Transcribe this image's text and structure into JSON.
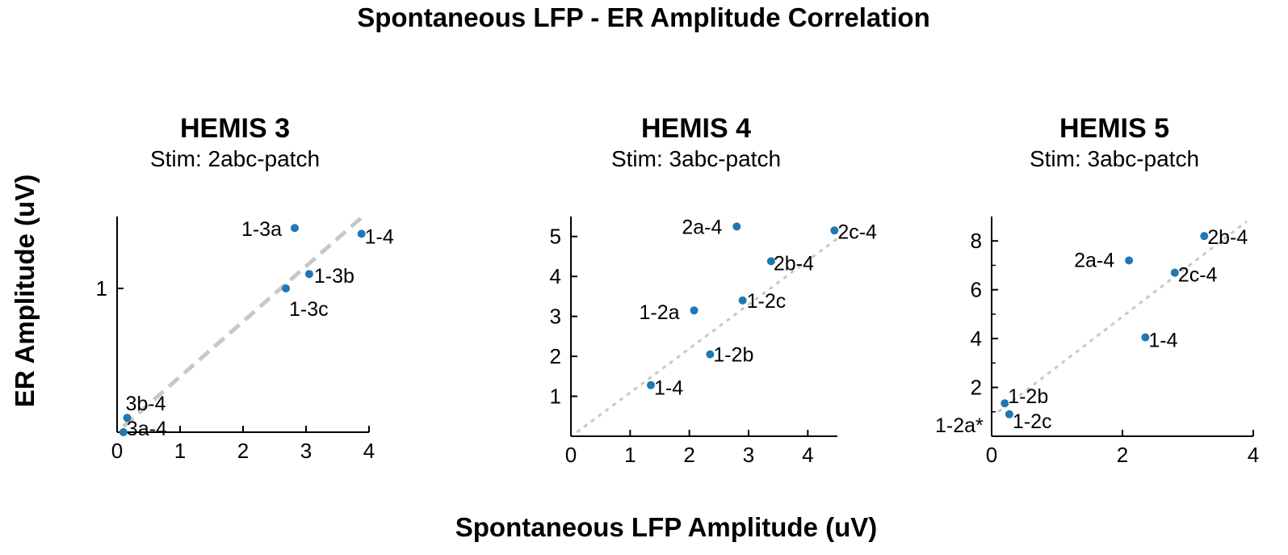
{
  "chart_data": {
    "type": "scatter",
    "title": "Spontaneous LFP - ER Amplitude Correlation",
    "xlabel": "Spontaneous LFP Amplitude (uV)",
    "ylabel": "ER Amplitude (uV)",
    "marker_color": "#1f77b4",
    "fit_line_color": "#c8c8c8",
    "panels": [
      {
        "title": "HEMIS 3",
        "subtitle": "Stim: 2abc-patch",
        "xlim": [
          0,
          4
        ],
        "ylim": [
          0.5,
          1.25
        ],
        "xticks": [
          0,
          1,
          2,
          3,
          4
        ],
        "yticks": [
          1
        ],
        "minor_yticks": [],
        "fit_line": {
          "x": [
            0.1,
            3.9
          ],
          "y": [
            0.52,
            1.25
          ],
          "style": "dashed-thick"
        },
        "points": [
          {
            "label": "1-3a",
            "x": 2.82,
            "y": 1.21
          },
          {
            "label": "1-4",
            "x": 3.88,
            "y": 1.19
          },
          {
            "label": "1-3b",
            "x": 3.05,
            "y": 1.05
          },
          {
            "label": "1-3c",
            "x": 2.68,
            "y": 1.0
          },
          {
            "label": "3b-4",
            "x": 0.16,
            "y": 0.55
          },
          {
            "label": "3a-4",
            "x": 0.1,
            "y": 0.5
          }
        ]
      },
      {
        "title": "HEMIS 4",
        "subtitle": "Stim: 3abc-patch",
        "xlim": [
          0,
          4.5
        ],
        "ylim": [
          0,
          5.5
        ],
        "xticks": [
          0,
          1,
          2,
          3,
          4
        ],
        "yticks": [
          1,
          2,
          3,
          4,
          5
        ],
        "minor_yticks": [],
        "fit_line": {
          "x": [
            0.1,
            5.0
          ],
          "y": [
            0.1,
            5.5
          ],
          "style": "dotted"
        },
        "points": [
          {
            "label": "2a-4",
            "x": 2.8,
            "y": 5.25
          },
          {
            "label": "2c-4",
            "x": 4.45,
            "y": 5.15
          },
          {
            "label": "2b-4",
            "x": 3.38,
            "y": 4.38
          },
          {
            "label": "1-2a",
            "x": 2.08,
            "y": 3.15
          },
          {
            "label": "1-2c",
            "x": 2.9,
            "y": 3.4
          },
          {
            "label": "1-2b",
            "x": 2.35,
            "y": 2.05
          },
          {
            "label": "1-4",
            "x": 1.35,
            "y": 1.28
          }
        ]
      },
      {
        "title": "HEMIS 5",
        "subtitle": "Stim: 3abc-patch",
        "xlim": [
          0,
          4
        ],
        "ylim": [
          0,
          9
        ],
        "xticks": [
          0,
          2,
          4
        ],
        "yticks": [
          2,
          4,
          6,
          8
        ],
        "minor_yticks": [
          1,
          3,
          5,
          7
        ],
        "fit_line": {
          "x": [
            0.1,
            3.9
          ],
          "y": [
            1.0,
            8.8
          ],
          "style": "dotted"
        },
        "points": [
          {
            "label": "2b-4",
            "x": 3.25,
            "y": 8.2
          },
          {
            "label": "2a-4",
            "x": 2.1,
            "y": 7.2
          },
          {
            "label": "2c-4",
            "x": 2.8,
            "y": 6.7
          },
          {
            "label": "1-4",
            "x": 2.35,
            "y": 4.05
          },
          {
            "label": "1-2b",
            "x": 0.2,
            "y": 1.35
          },
          {
            "label": "1-2c",
            "x": 0.27,
            "y": 0.9
          },
          {
            "label": "1-2a*",
            "x": null,
            "y": null
          }
        ]
      }
    ]
  }
}
